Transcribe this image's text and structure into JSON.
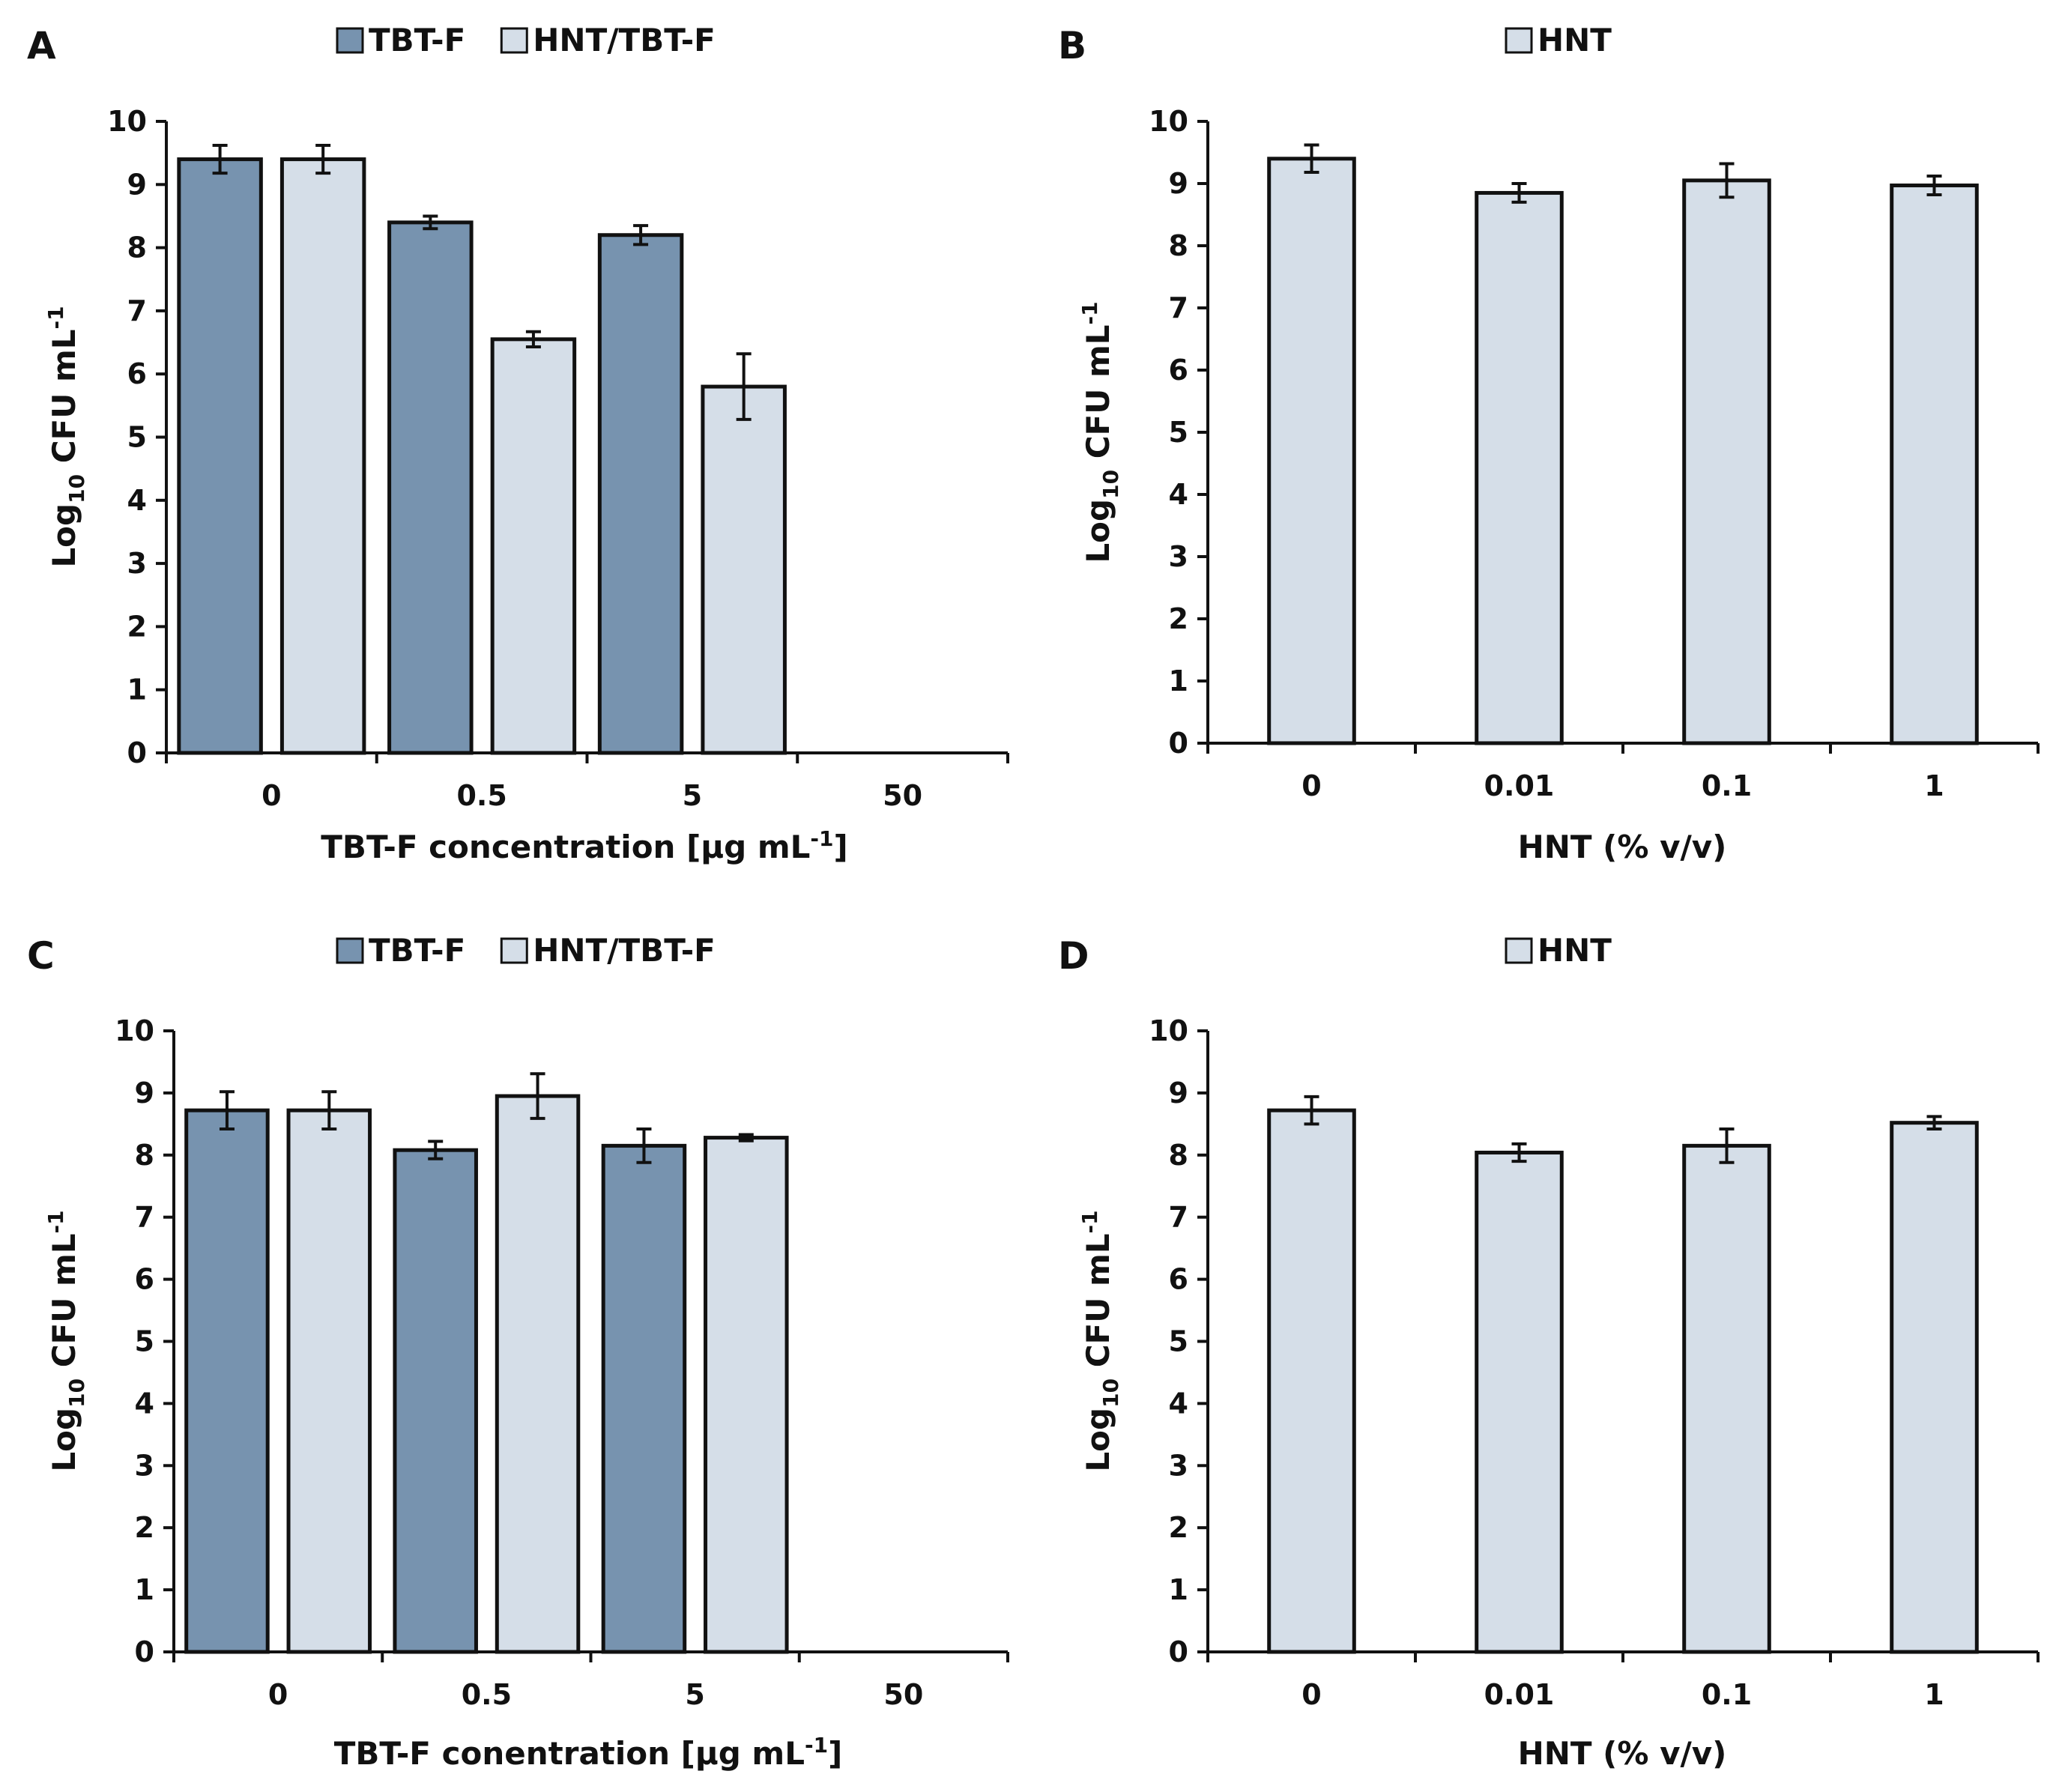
{
  "colors": {
    "tbt_f": "#7793AF",
    "hnt_tbt_f": "#D5DEE8",
    "hnt": "#D5DEE8",
    "outline": "#111111"
  },
  "chart_data": [
    {
      "panel": "A",
      "type": "bar",
      "legend": [
        "TBT-F",
        "HNT/TBT-F"
      ],
      "categories": [
        "0",
        "0.5",
        "5",
        "50"
      ],
      "series": [
        {
          "name": "TBT-F",
          "color_key": "tbt_f",
          "values": [
            9.4,
            8.4,
            8.2,
            0
          ],
          "errors": [
            0.22,
            0.1,
            0.15,
            0
          ]
        },
        {
          "name": "HNT/TBT-F",
          "color_key": "hnt_tbt_f",
          "values": [
            9.4,
            6.55,
            5.8,
            0
          ],
          "errors": [
            0.22,
            0.12,
            0.52,
            0
          ]
        }
      ],
      "xlabel": "TBT-F concentration [µg mL",
      "xlabel_sup": "-1",
      "xlabel_tail": "]",
      "ylabel_prefix": "Log",
      "ylabel_sub": "10",
      "ylabel_mid": " CFU mL",
      "ylabel_sup": "-1",
      "ylim": [
        0,
        10
      ],
      "yticks": [
        "0",
        "1",
        "2",
        "3",
        "4",
        "5",
        "6",
        "7",
        "8",
        "9",
        "10"
      ]
    },
    {
      "panel": "B",
      "type": "bar",
      "legend": [
        "HNT"
      ],
      "categories": [
        "0",
        "0.01",
        "0.1",
        "1"
      ],
      "series": [
        {
          "name": "HNT",
          "color_key": "hnt",
          "values": [
            9.4,
            8.85,
            9.05,
            8.97
          ],
          "errors": [
            0.22,
            0.15,
            0.27,
            0.15
          ]
        }
      ],
      "xlabel": "HNT (% v/v)",
      "xlabel_sup": "",
      "xlabel_tail": "",
      "ylabel_prefix": "Log",
      "ylabel_sub": "10",
      "ylabel_mid": " CFU mL",
      "ylabel_sup": "-1",
      "ylim": [
        0,
        10
      ],
      "yticks": [
        "0",
        "1",
        "2",
        "3",
        "4",
        "5",
        "6",
        "7",
        "8",
        "9",
        "10"
      ]
    },
    {
      "panel": "C",
      "type": "bar",
      "legend": [
        "TBT-F",
        "HNT/TBT-F"
      ],
      "categories": [
        "0",
        "0.5",
        "5",
        "50"
      ],
      "series": [
        {
          "name": "TBT-F",
          "color_key": "tbt_f",
          "values": [
            8.72,
            8.08,
            8.15,
            0
          ],
          "errors": [
            0.3,
            0.14,
            0.27,
            0
          ]
        },
        {
          "name": "HNT/TBT-F",
          "color_key": "hnt_tbt_f",
          "values": [
            8.72,
            8.95,
            8.28,
            0
          ],
          "errors": [
            0.3,
            0.36,
            0.05,
            0
          ]
        }
      ],
      "xlabel": "TBT-F conentration [µg mL",
      "xlabel_sup": "-1",
      "xlabel_tail": "]",
      "ylabel_prefix": "Log",
      "ylabel_sub": "10",
      "ylabel_mid": " CFU mL",
      "ylabel_sup": "-1",
      "ylim": [
        0,
        10
      ],
      "yticks": [
        "0",
        "1",
        "2",
        "3",
        "4",
        "5",
        "6",
        "7",
        "8",
        "9",
        "10"
      ]
    },
    {
      "panel": "D",
      "type": "bar",
      "legend": [
        "HNT"
      ],
      "categories": [
        "0",
        "0.01",
        "0.1",
        "1"
      ],
      "series": [
        {
          "name": "HNT",
          "color_key": "hnt",
          "values": [
            8.72,
            8.04,
            8.15,
            8.52
          ],
          "errors": [
            0.22,
            0.14,
            0.27,
            0.1
          ]
        }
      ],
      "xlabel": "HNT (% v/v)",
      "xlabel_sup": "",
      "xlabel_tail": "",
      "ylabel_prefix": "Log",
      "ylabel_sub": "10",
      "ylabel_mid": " CFU mL",
      "ylabel_sup": "-1",
      "ylim": [
        0,
        10
      ],
      "yticks": [
        "0",
        "1",
        "2",
        "3",
        "4",
        "5",
        "6",
        "7",
        "8",
        "9",
        "10"
      ]
    }
  ]
}
